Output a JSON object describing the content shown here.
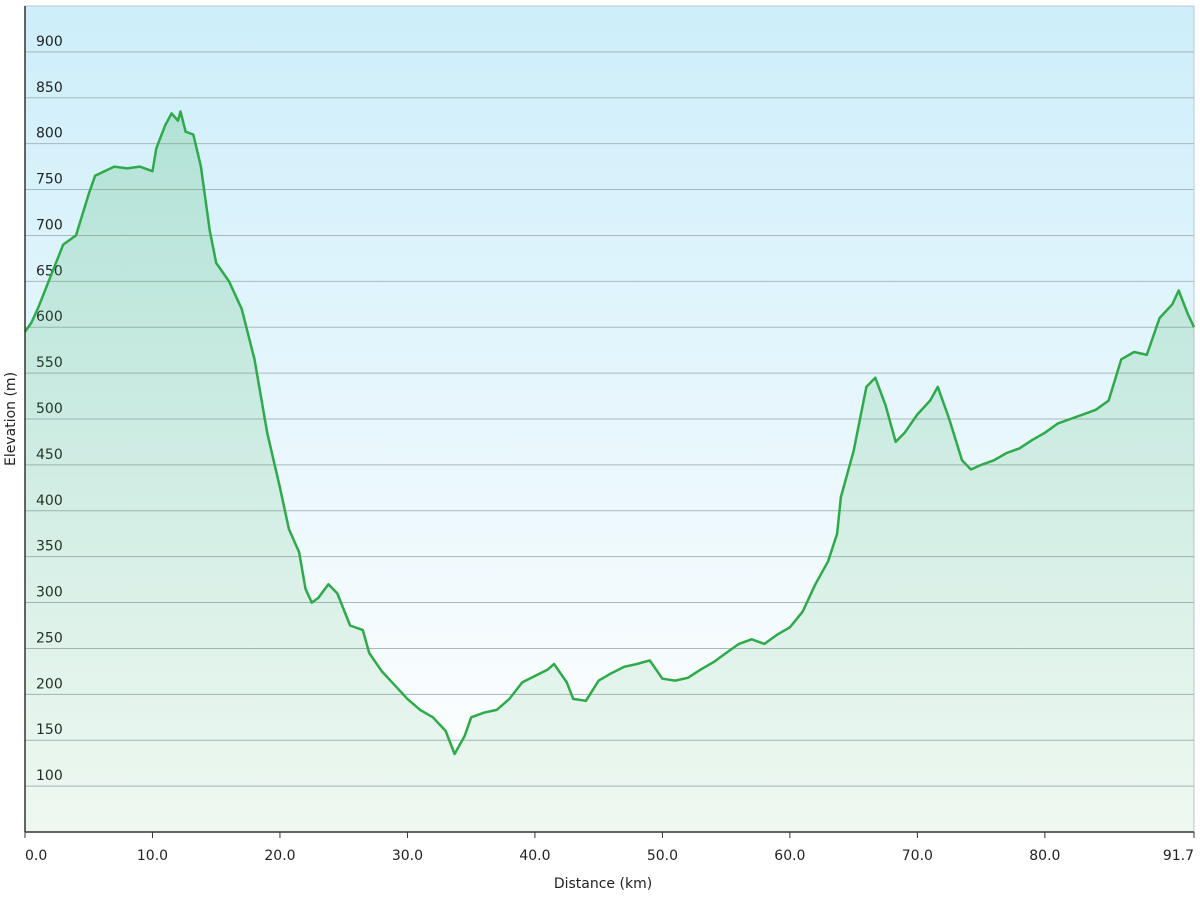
{
  "chart_data": {
    "type": "area",
    "xlabel": "Distance  (km)",
    "ylabel": "Elevation (m)",
    "color": "#2eaa4a",
    "grid": true,
    "xlim": [
      0,
      91.7
    ],
    "ylim": [
      50,
      950
    ],
    "xticks": [
      {
        "value": 0,
        "label": "0.0"
      },
      {
        "value": 10,
        "label": "10.0"
      },
      {
        "value": 20,
        "label": "20.0"
      },
      {
        "value": 30,
        "label": "30.0"
      },
      {
        "value": 40,
        "label": "40.0"
      },
      {
        "value": 50,
        "label": "50.0"
      },
      {
        "value": 60,
        "label": "60.0"
      },
      {
        "value": 70,
        "label": "70.0"
      },
      {
        "value": 80,
        "label": "80.0"
      },
      91.7
    ],
    "yticks": [
      100,
      150,
      200,
      250,
      300,
      350,
      400,
      450,
      500,
      550,
      600,
      650,
      700,
      750,
      800,
      850,
      900
    ],
    "x": [
      0,
      0.5,
      1,
      2,
      3,
      4,
      5,
      5.5,
      7,
      8,
      9,
      10,
      10.3,
      11,
      11.5,
      12,
      12.2,
      12.6,
      13.2,
      13.8,
      14.5,
      15,
      16,
      17,
      18,
      19,
      20,
      20.7,
      21.5,
      22,
      22.5,
      23,
      23.8,
      24.5,
      25.5,
      26.5,
      27,
      28,
      29,
      30,
      31,
      32,
      33,
      33.7,
      34.5,
      35,
      36,
      37,
      38,
      39,
      40,
      41,
      41.5,
      42.5,
      43,
      44,
      45,
      46,
      47,
      48,
      49,
      50,
      51,
      52,
      53,
      54,
      55,
      56,
      57,
      58,
      59,
      60,
      61,
      62,
      63,
      63.7,
      64,
      65,
      66,
      66.7,
      67.5,
      68.3,
      69,
      70,
      71,
      71.6,
      72.5,
      73.5,
      74.2,
      75,
      76,
      77,
      78,
      79,
      80,
      81,
      82,
      83,
      84,
      85,
      86,
      87,
      88,
      89,
      90,
      90.5,
      91.2,
      91.7
    ],
    "values": [
      595,
      605,
      620,
      655,
      690,
      700,
      745,
      765,
      775,
      773,
      775,
      770,
      795,
      820,
      833,
      825,
      835,
      813,
      810,
      775,
      705,
      670,
      650,
      620,
      565,
      485,
      425,
      380,
      355,
      315,
      300,
      305,
      320,
      310,
      275,
      270,
      245,
      225,
      210,
      195,
      183,
      175,
      160,
      135,
      155,
      175,
      180,
      183,
      195,
      213,
      220,
      227,
      233,
      213,
      195,
      193,
      215,
      223,
      230,
      233,
      237,
      217,
      215,
      218,
      227,
      235,
      245,
      255,
      260,
      255,
      265,
      273,
      290,
      320,
      345,
      375,
      415,
      465,
      535,
      545,
      515,
      475,
      485,
      505,
      520,
      535,
      500,
      455,
      445,
      450,
      455,
      463,
      468,
      477,
      485,
      495,
      500,
      505,
      510,
      520,
      565,
      573,
      570,
      610,
      625,
      640,
      615,
      600
    ]
  }
}
